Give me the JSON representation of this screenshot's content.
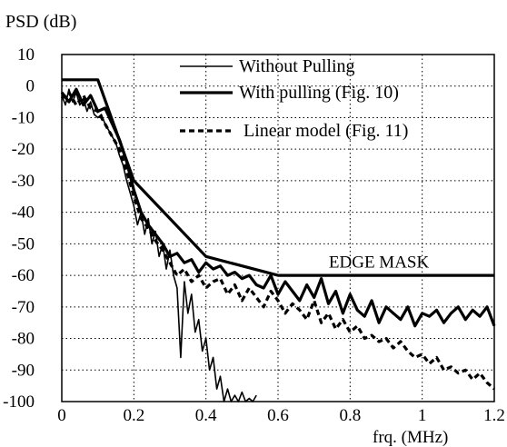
{
  "chart_data": {
    "type": "line",
    "ylabel": "PSD (dB)",
    "xlabel": "frq. (MHz)",
    "xlim": [
      0,
      1.2
    ],
    "ylim": [
      -100,
      10
    ],
    "x_ticks": [
      0,
      0.2,
      0.4,
      0.6,
      0.8,
      1,
      1.2
    ],
    "x_tick_labels": [
      "0",
      "0.2",
      "0.4",
      "0.6",
      "0.8",
      "1",
      "1.2"
    ],
    "y_ticks": [
      10,
      0,
      -10,
      -20,
      -30,
      -40,
      -50,
      -60,
      -70,
      -80,
      -90,
      -100
    ],
    "y_tick_labels": [
      "10",
      "0",
      "-10",
      "-20",
      "-30",
      "-40",
      "-50",
      "-60",
      "-70",
      "-80",
      "-90",
      "-100"
    ],
    "grid": true,
    "grid_style": "dotted",
    "legend_position": "top-right",
    "annotations": [
      {
        "text": "EDGE MASK",
        "x": 0.88,
        "y": -57.5
      }
    ],
    "series": [
      {
        "name": "Without Pulling",
        "style": "thin",
        "x": [
          0,
          0.01,
          0.02,
          0.03,
          0.04,
          0.05,
          0.06,
          0.07,
          0.08,
          0.09,
          0.1,
          0.11,
          0.12,
          0.13,
          0.14,
          0.15,
          0.16,
          0.17,
          0.18,
          0.19,
          0.2,
          0.21,
          0.22,
          0.23,
          0.24,
          0.25,
          0.26,
          0.27,
          0.28,
          0.29,
          0.3,
          0.31,
          0.32,
          0.33,
          0.34,
          0.35,
          0.36,
          0.37,
          0.38,
          0.39,
          0.4,
          0.41,
          0.42,
          0.43,
          0.44,
          0.45,
          0.46,
          0.47,
          0.48,
          0.49,
          0.5,
          0.51,
          0.52,
          0.53,
          0.54
        ],
        "values": [
          -3,
          -6,
          -1,
          -5,
          -2,
          -6,
          -4,
          -8,
          -5,
          -9,
          -10,
          -9,
          -12,
          -14,
          -16,
          -18,
          -22,
          -25,
          -30,
          -34,
          -38,
          -44,
          -40,
          -47,
          -42,
          -50,
          -46,
          -54,
          -50,
          -58,
          -52,
          -60,
          -64,
          -86,
          -62,
          -72,
          -66,
          -78,
          -74,
          -84,
          -80,
          -90,
          -86,
          -96,
          -92,
          -100,
          -96,
          -100,
          -98,
          -100,
          -97,
          -100,
          -99,
          -100,
          -98
        ]
      },
      {
        "name": "With pulling (Fig. 10)",
        "style": "thick",
        "x": [
          0,
          0.02,
          0.04,
          0.06,
          0.08,
          0.1,
          0.12,
          0.14,
          0.16,
          0.18,
          0.2,
          0.22,
          0.24,
          0.26,
          0.28,
          0.3,
          0.32,
          0.34,
          0.36,
          0.38,
          0.4,
          0.42,
          0.44,
          0.46,
          0.48,
          0.5,
          0.52,
          0.54,
          0.56,
          0.58,
          0.6,
          0.62,
          0.64,
          0.66,
          0.68,
          0.7,
          0.72,
          0.74,
          0.76,
          0.78,
          0.8,
          0.82,
          0.84,
          0.86,
          0.88,
          0.9,
          0.92,
          0.94,
          0.96,
          0.98,
          1,
          1.02,
          1.04,
          1.06,
          1.08,
          1.1,
          1.12,
          1.14,
          1.16,
          1.18,
          1.2
        ],
        "values": [
          -2,
          -5,
          -1,
          -6,
          -3,
          -8,
          -7,
          -12,
          -17,
          -24,
          -33,
          -40,
          -44,
          -47,
          -50,
          -54,
          -53,
          -56,
          -55,
          -59,
          -56,
          -58,
          -57,
          -60,
          -59,
          -61,
          -60,
          -63,
          -64,
          -60,
          -66,
          -62,
          -65,
          -68,
          -63,
          -67,
          -61,
          -69,
          -65,
          -72,
          -66,
          -71,
          -73,
          -68,
          -75,
          -70,
          -72,
          -74,
          -70,
          -76,
          -72,
          -73,
          -71,
          -75,
          -72,
          -70,
          -74,
          -71,
          -73,
          -70,
          -76
        ]
      },
      {
        "name": "Linear model (Fig. 11)",
        "style": "dashed",
        "x": [
          0,
          0.02,
          0.04,
          0.06,
          0.08,
          0.1,
          0.12,
          0.14,
          0.16,
          0.18,
          0.2,
          0.22,
          0.24,
          0.26,
          0.28,
          0.3,
          0.32,
          0.34,
          0.36,
          0.38,
          0.4,
          0.42,
          0.44,
          0.46,
          0.48,
          0.5,
          0.52,
          0.54,
          0.56,
          0.58,
          0.6,
          0.62,
          0.64,
          0.66,
          0.68,
          0.7,
          0.72,
          0.74,
          0.76,
          0.78,
          0.8,
          0.82,
          0.84,
          0.86,
          0.88,
          0.9,
          0.92,
          0.94,
          0.96,
          0.98,
          1,
          1.02,
          1.04,
          1.06,
          1.08,
          1.1,
          1.12,
          1.14,
          1.16,
          1.18,
          1.2
        ],
        "values": [
          -4,
          -2,
          -6,
          -3,
          -7,
          -8,
          -12,
          -16,
          -20,
          -27,
          -35,
          -42,
          -45,
          -49,
          -52,
          -56,
          -60,
          -58,
          -62,
          -60,
          -64,
          -62,
          -61,
          -66,
          -63,
          -68,
          -64,
          -67,
          -70,
          -65,
          -68,
          -72,
          -69,
          -71,
          -74,
          -68,
          -75,
          -72,
          -77,
          -74,
          -78,
          -76,
          -80,
          -79,
          -81,
          -80,
          -83,
          -81,
          -84,
          -86,
          -85,
          -88,
          -86,
          -90,
          -89,
          -91,
          -90,
          -93,
          -91,
          -94,
          -96
        ]
      },
      {
        "name": "EDGE MASK",
        "style": "thick",
        "x": [
          0,
          0.1,
          0.2,
          0.4,
          0.6,
          1.2
        ],
        "values": [
          2,
          2,
          -30,
          -54,
          -60,
          -60
        ]
      }
    ]
  }
}
